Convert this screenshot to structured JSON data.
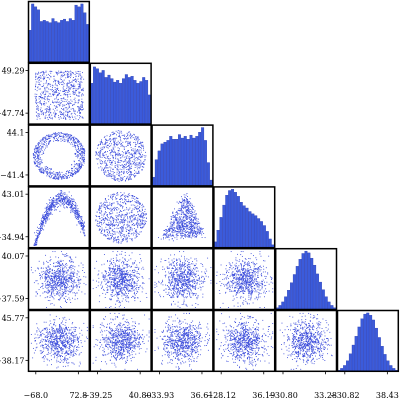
{
  "chart_data": {
    "type": "corner",
    "title": "",
    "parameters": [
      "",
      "",
      "",
      "",
      "",
      ""
    ],
    "x_tick_labels": [
      [
        "−68.0",
        "72.8"
      ],
      [
        "−39.25",
        "40.80"
      ],
      [
        "−33.93",
        "36.61"
      ],
      [
        "−28.12",
        "36.19"
      ],
      [
        "−30.80",
        "33.28"
      ],
      [
        "−30.82",
        "38.43"
      ]
    ],
    "y_tick_labels": [
      null,
      [
        "49.29",
        "−47.74"
      ],
      [
        "44.1",
        "−41.4"
      ],
      [
        "43.01",
        "−34.94"
      ],
      [
        "40.07",
        "−37.59"
      ],
      [
        "45.77",
        "−38.17"
      ]
    ],
    "ranges": [
      [
        -75,
        80
      ],
      [
        -53,
        55
      ],
      [
        -46,
        49
      ],
      [
        -31,
        39
      ],
      [
        -34,
        37
      ],
      [
        -34,
        42
      ]
    ],
    "diagonal_histograms": [
      {
        "param": 1,
        "shape": "broad flat",
        "relative_counts": [
          0.55,
          1.0,
          0.95,
          0.9,
          0.7,
          0.72,
          0.7,
          0.68,
          0.75,
          0.7,
          0.68,
          0.72,
          0.74,
          0.7,
          0.75,
          0.72,
          0.98,
          0.95,
          1.0,
          0.85,
          0.65
        ]
      },
      {
        "param": 2,
        "shape": "flat",
        "relative_counts": [
          0.7,
          0.98,
          0.95,
          0.88,
          0.92,
          0.8,
          0.84,
          0.78,
          0.72,
          0.75,
          0.7,
          0.78,
          0.85,
          0.8,
          0.82,
          0.75,
          0.7,
          0.73,
          0.8,
          0.75,
          0.5
        ]
      },
      {
        "param": 3,
        "shape": "flat",
        "relative_counts": [
          0.15,
          0.45,
          0.6,
          0.72,
          0.75,
          0.78,
          0.85,
          0.8,
          0.8,
          0.88,
          0.82,
          0.85,
          0.8,
          0.87,
          0.82,
          0.85,
          0.92,
          1.0,
          0.78,
          0.4,
          0.1
        ]
      },
      {
        "param": 4,
        "shape": "skewed",
        "relative_counts": [
          0.1,
          0.3,
          0.52,
          0.73,
          0.9,
          0.98,
          1.0,
          0.95,
          0.88,
          0.78,
          0.72,
          0.68,
          0.62,
          0.58,
          0.55,
          0.5,
          0.45,
          0.38,
          0.28,
          0.15,
          0.05
        ]
      },
      {
        "param": 5,
        "shape": "gaussian",
        "relative_counts": [
          0.03,
          0.07,
          0.13,
          0.22,
          0.33,
          0.46,
          0.6,
          0.74,
          0.86,
          0.96,
          1.0,
          0.97,
          0.88,
          0.76,
          0.61,
          0.47,
          0.34,
          0.22,
          0.13,
          0.07,
          0.03
        ]
      },
      {
        "param": 6,
        "shape": "gaussian",
        "relative_counts": [
          0.02,
          0.05,
          0.1,
          0.18,
          0.3,
          0.45,
          0.6,
          0.76,
          0.9,
          0.98,
          1.0,
          0.96,
          0.88,
          0.74,
          0.58,
          0.43,
          0.29,
          0.18,
          0.1,
          0.05,
          0.02
        ]
      }
    ],
    "scatter_panels": [
      {
        "row": 2,
        "col": 1,
        "pattern": "uniform"
      },
      {
        "row": 3,
        "col": 1,
        "pattern": "ring"
      },
      {
        "row": 3,
        "col": 2,
        "pattern": "disk"
      },
      {
        "row": 4,
        "col": 1,
        "pattern": "v-shape"
      },
      {
        "row": 4,
        "col": 2,
        "pattern": "disk"
      },
      {
        "row": 4,
        "col": 3,
        "pattern": "triangle"
      },
      {
        "row": 5,
        "col": 1,
        "pattern": "gaussian"
      },
      {
        "row": 5,
        "col": 2,
        "pattern": "gaussian"
      },
      {
        "row": 5,
        "col": 3,
        "pattern": "gaussian"
      },
      {
        "row": 5,
        "col": 4,
        "pattern": "gaussian"
      },
      {
        "row": 6,
        "col": 1,
        "pattern": "gaussian"
      },
      {
        "row": 6,
        "col": 2,
        "pattern": "gaussian"
      },
      {
        "row": 6,
        "col": 3,
        "pattern": "gaussian"
      },
      {
        "row": 6,
        "col": 4,
        "pattern": "gaussian"
      },
      {
        "row": 6,
        "col": 5,
        "pattern": "gaussian"
      }
    ],
    "grid": false,
    "legend": "none"
  },
  "colors": {
    "points": "#3b4cdb",
    "bars": "#3b5bdb",
    "axes": "#000000",
    "text": "#000000"
  }
}
